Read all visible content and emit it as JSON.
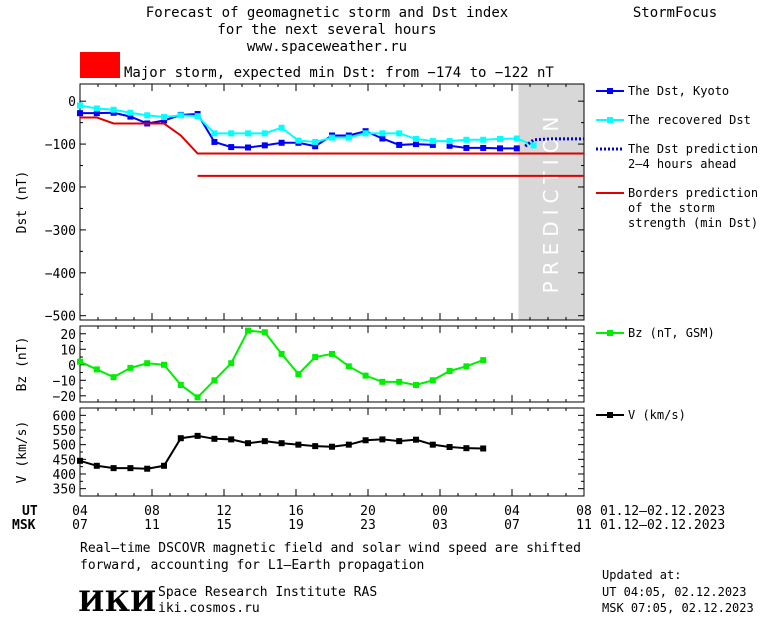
{
  "header": {
    "title_lines": [
      "Forecast of geomagnetic storm and Dst index",
      "for the next several hours",
      "www.spaceweather.ru"
    ],
    "brand": "StormFocus",
    "storm_color": "#ff0000",
    "storm_text": "Major storm, expected min Dst: from −174 to −122 nT"
  },
  "prediction_label": "PREDICTION",
  "time_axis": {
    "ut_label": "UT",
    "msk_label": "MSK",
    "ut_ticks": [
      "04",
      "08",
      "12",
      "16",
      "20",
      "00",
      "04",
      "08"
    ],
    "msk_ticks": [
      "07",
      "11",
      "15",
      "19",
      "23",
      "03",
      "07",
      "11"
    ],
    "ut_range": "01.12–02.12.2023",
    "msk_range": "01.12–02.12.2023"
  },
  "footer": {
    "note_lines": [
      "Real–time DSCOVR magnetic field and solar wind speed are shifted",
      "forward, accounting for L1–Earth propagation"
    ],
    "logo_text": "ИКИ",
    "institute": "Space Research Institute RAS",
    "site": "iki.cosmos.ru",
    "updated_label": "Updated at:",
    "updated_ut": "UT   04:05, 02.12.2023",
    "updated_msk": "MSK 07:05, 02.12.2023"
  },
  "chart_data": [
    {
      "type": "line",
      "ylabel": "Dst (nT)",
      "ylim": [
        -510,
        40
      ],
      "yticks": [
        0,
        -100,
        -200,
        -300,
        -400,
        -500
      ],
      "x_hours": [
        0,
        24
      ],
      "prediction_start_hour": 20.9,
      "legend": [
        {
          "key": "kyoto",
          "label": [
            "The Dst, Kyoto"
          ]
        },
        {
          "key": "recovered",
          "label": [
            "The recovered Dst"
          ]
        },
        {
          "key": "prediction",
          "label": [
            "The Dst prediction",
            "2–4 hours ahead"
          ]
        },
        {
          "key": "borders",
          "label": [
            "Borders prediction",
            "of the storm",
            "strength (min Dst)"
          ]
        }
      ],
      "series": [
        {
          "key": "kyoto",
          "name": "The Dst, Kyoto",
          "color": "#0000ff",
          "x": [
            0,
            1,
            2,
            3,
            4,
            5,
            6,
            7,
            8,
            9,
            10,
            11,
            12,
            13,
            14,
            15,
            16,
            17,
            18,
            19,
            20,
            21
          ],
          "y": [
            -28,
            -28,
            -27,
            -36,
            -52,
            -45,
            -32,
            -30,
            -95,
            -107,
            -108,
            -103,
            -97,
            -97,
            -105,
            -80,
            -80,
            -70,
            -87,
            -102,
            -100,
            -102
          ]
        },
        {
          "key": "kyoto_tail",
          "color": "#0000ff",
          "x": [
            22,
            23,
            24,
            25,
            26
          ],
          "y": [
            -104,
            -109,
            -109,
            -110,
            -110
          ]
        },
        {
          "key": "recovered",
          "name": "The recovered Dst",
          "color": "#00ffff",
          "x": [
            0,
            1,
            2,
            3,
            4,
            5,
            6,
            7,
            8,
            9,
            10,
            11,
            12,
            13,
            14,
            15,
            16,
            17,
            18,
            19,
            20,
            21,
            22,
            23,
            24,
            25,
            26,
            27
          ],
          "y": [
            -10,
            -17,
            -20,
            -27,
            -33,
            -37,
            -33,
            -35,
            -75,
            -75,
            -75,
            -75,
            -62,
            -92,
            -95,
            -85,
            -85,
            -75,
            -75,
            -75,
            -88,
            -93,
            -93,
            -90,
            -90,
            -88,
            -87,
            -103
          ]
        },
        {
          "key": "prediction",
          "name": "The Dst prediction",
          "color": "#0000cc",
          "dashed": true,
          "x": [
            26.5,
            27,
            28,
            29,
            30
          ],
          "y": [
            -105,
            -90,
            -88,
            -88,
            -88
          ]
        },
        {
          "key": "border_upper",
          "name": "Borders prediction",
          "color": "#dd0000",
          "x": [
            0,
            1,
            2,
            3,
            4,
            5,
            6,
            7,
            8,
            9,
            30
          ],
          "y": [
            -38,
            -38,
            -52,
            -52,
            -52,
            -52,
            -80,
            -122,
            -122,
            -122,
            -122
          ]
        },
        {
          "key": "border_lower",
          "color": "#dd0000",
          "x": [
            7,
            30
          ],
          "y": [
            -174,
            -174
          ]
        }
      ]
    },
    {
      "type": "line",
      "ylabel": "Bz (nT)",
      "ylim": [
        -24,
        25
      ],
      "yticks": [
        20,
        10,
        0,
        -10,
        -20
      ],
      "legend": [
        {
          "key": "bz",
          "label": [
            "Bz (nT, GSM)"
          ]
        }
      ],
      "series": [
        {
          "key": "bz",
          "name": "Bz (nT, GSM)",
          "color": "#00ee00",
          "x": [
            0,
            1,
            2,
            3,
            4,
            5,
            6,
            7,
            8,
            9,
            10,
            11,
            12,
            13,
            14,
            15,
            16,
            17,
            18,
            19,
            20,
            21,
            22,
            23,
            24,
            25,
            26
          ],
          "y": [
            2,
            -3,
            -8,
            -2,
            1,
            0,
            -13,
            -21,
            -10,
            1,
            22,
            21,
            7,
            -6,
            5,
            7,
            -1,
            -7,
            -11,
            -11,
            -13,
            -10,
            -4,
            -1,
            3,
            null,
            null
          ]
        }
      ]
    },
    {
      "type": "line",
      "ylabel": "V (km/s)",
      "ylim": [
        325,
        625
      ],
      "yticks": [
        600,
        550,
        500,
        450,
        400,
        350
      ],
      "legend": [
        {
          "key": "v",
          "label": [
            "V (km/s)"
          ]
        }
      ],
      "series": [
        {
          "key": "v",
          "name": "V (km/s)",
          "color": "#000000",
          "x": [
            0,
            1,
            2,
            3,
            4,
            5,
            6,
            7,
            8,
            9,
            10,
            11,
            12,
            13,
            14,
            15,
            16,
            17,
            18,
            19,
            20,
            21,
            22,
            23,
            24,
            25,
            26
          ],
          "y": [
            445,
            428,
            420,
            420,
            418,
            428,
            522,
            530,
            520,
            518,
            505,
            512,
            505,
            500,
            495,
            493,
            500,
            515,
            518,
            512,
            517,
            500,
            492,
            488,
            487,
            null,
            null
          ]
        }
      ]
    }
  ]
}
